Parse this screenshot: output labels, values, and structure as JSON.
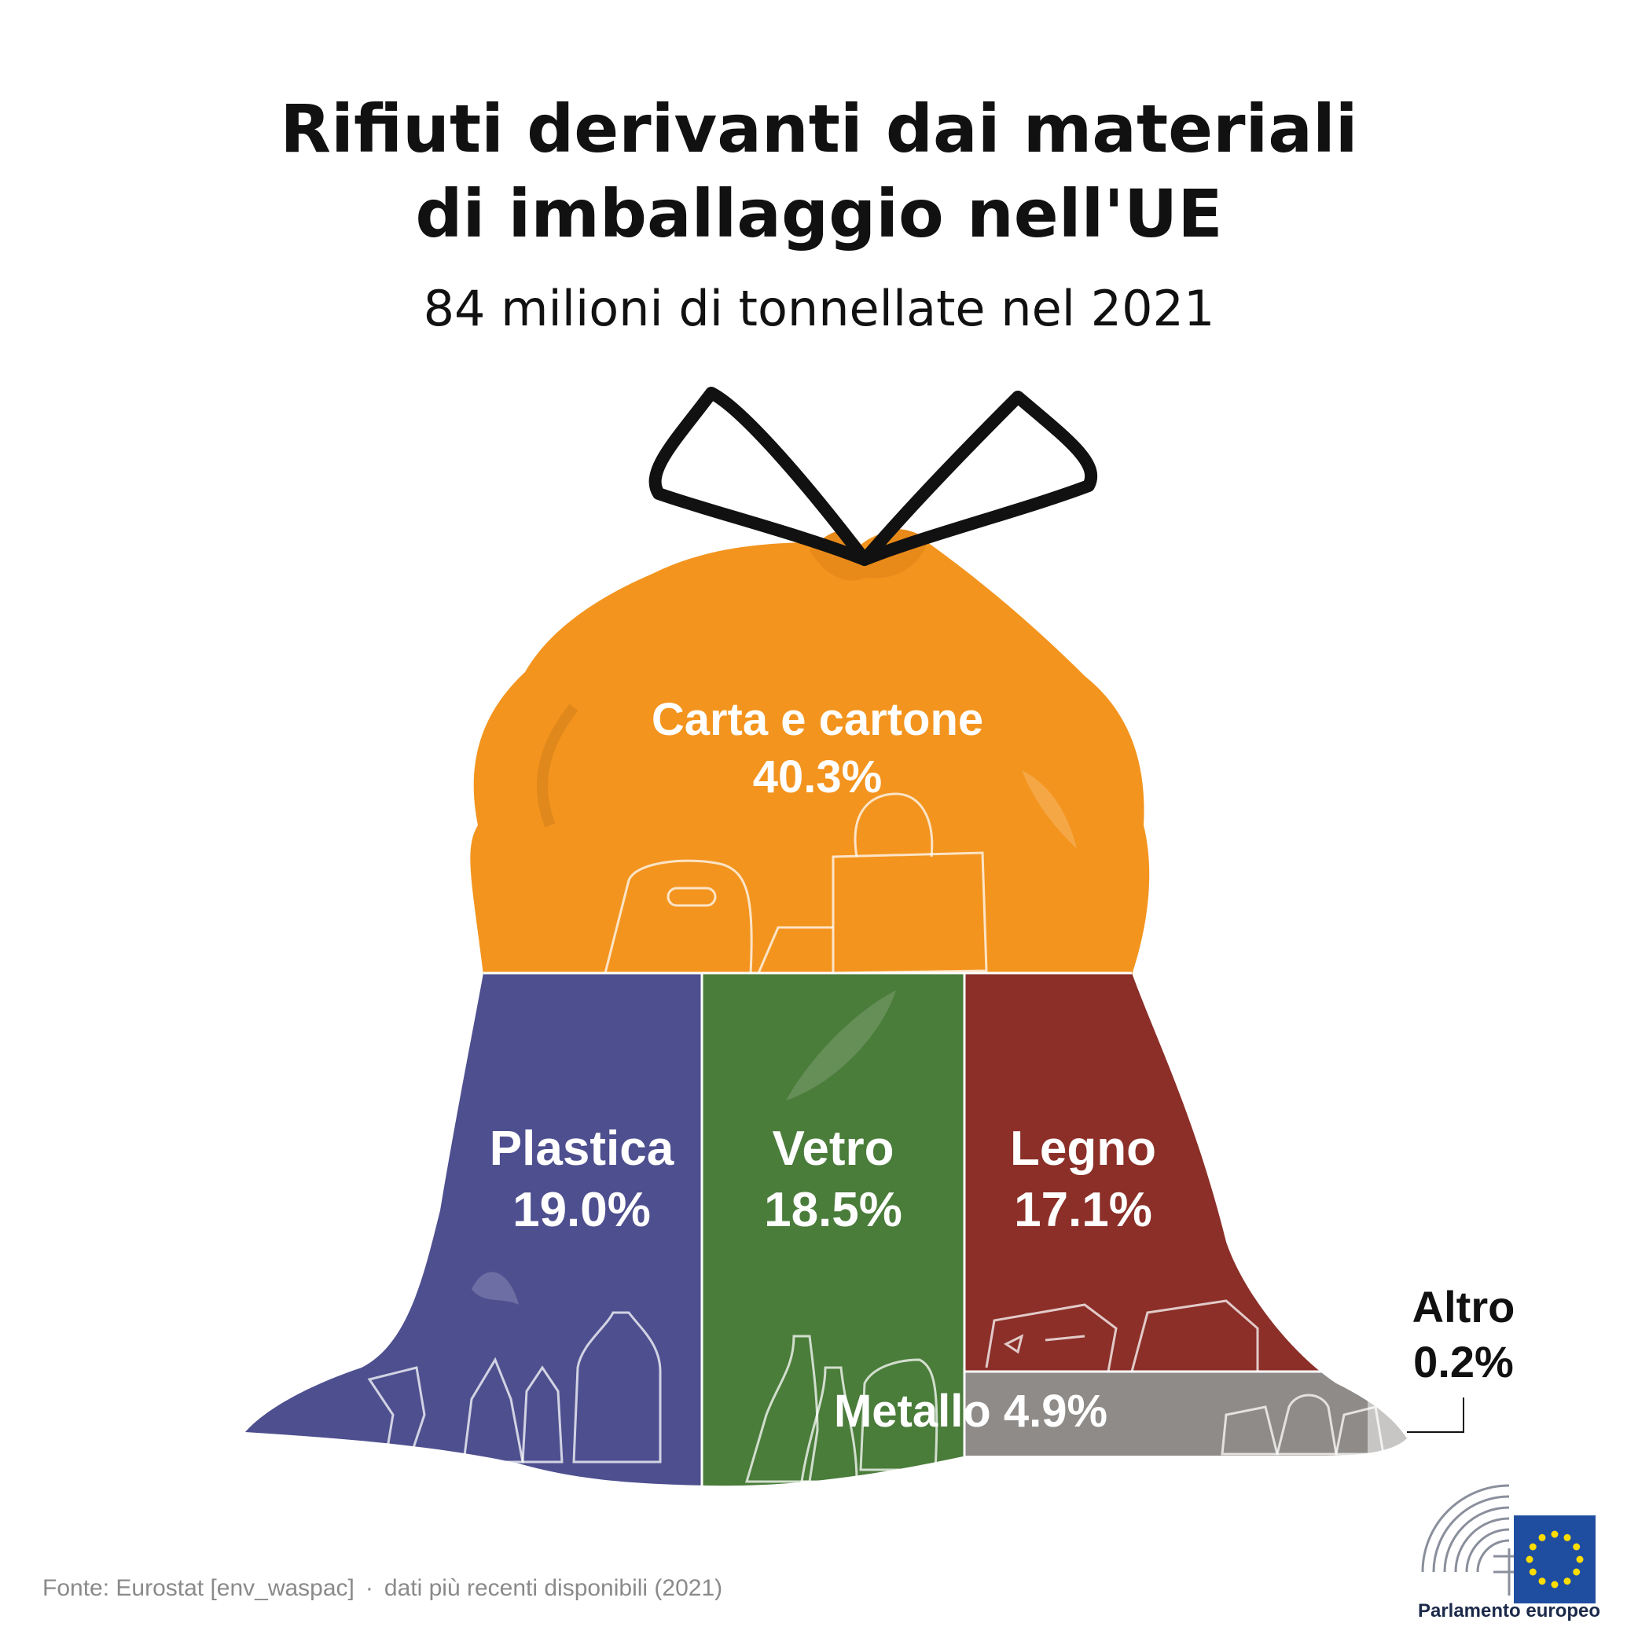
{
  "title_line1": "Rifiuti derivanti dai materiali",
  "title_line2": "di imballaggio nell'UE",
  "subtitle": "84 milioni di tonnellate nel 2021",
  "chart_data": {
    "type": "treemap",
    "unit": "%",
    "segments": [
      {
        "name": "Carta e cartone",
        "value": 40.3,
        "value_label": "40.3%",
        "color": "#F3941E"
      },
      {
        "name": "Plastica",
        "value": 19.0,
        "value_label": "19.0%",
        "color": "#4E4F8F"
      },
      {
        "name": "Vetro",
        "value": 18.5,
        "value_label": "18.5%",
        "color": "#4A7C3A"
      },
      {
        "name": "Legno",
        "value": 17.1,
        "value_label": "17.1%",
        "color": "#8B2F28"
      },
      {
        "name": "Metallo",
        "value": 4.9,
        "value_label": "4.9%",
        "color": "#8E8B88"
      },
      {
        "name": "Altro",
        "value": 0.2,
        "value_label": "0.2%",
        "color": "#C8C6C4"
      }
    ]
  },
  "source": {
    "text": "Fonte: Eurostat [env_waspac]",
    "separator": "·",
    "note": "dati più recenti disponibili (2021)"
  },
  "logo": {
    "text": "Parlamento europeo",
    "flag_color": "#1F4EA1",
    "star_color": "#FFDD00"
  }
}
